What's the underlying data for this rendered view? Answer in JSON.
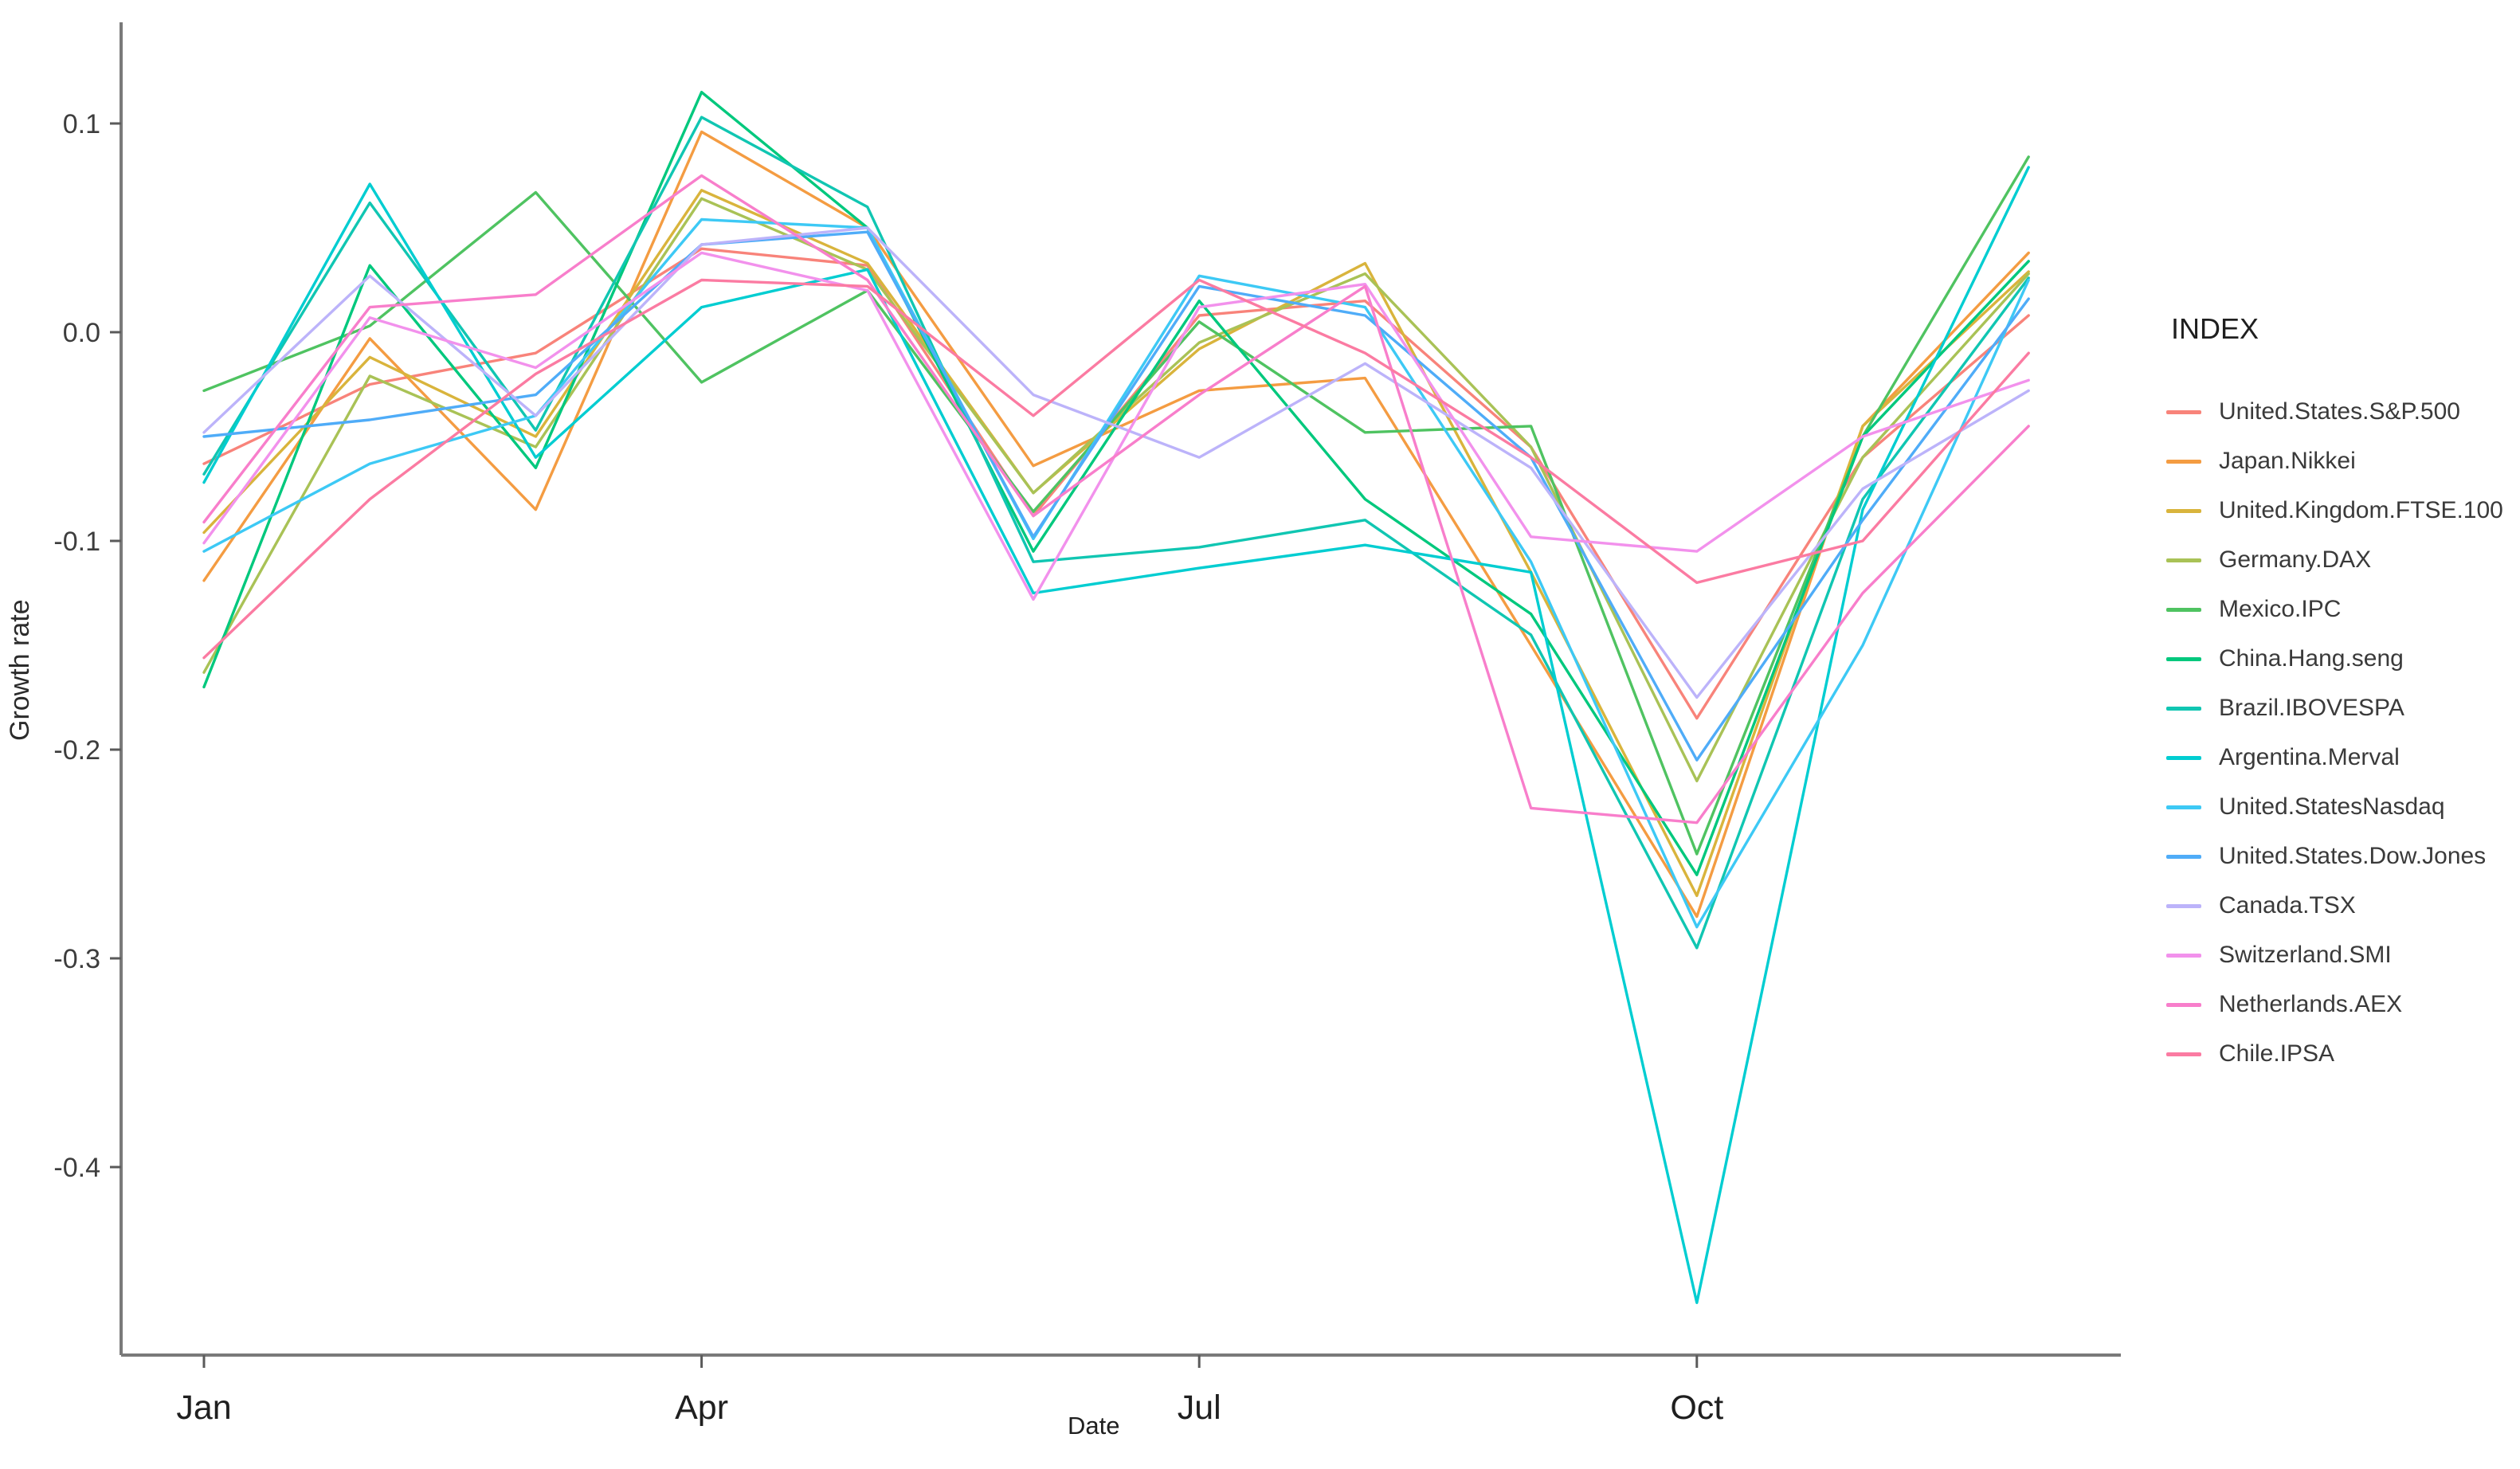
{
  "chart_data": {
    "type": "line",
    "title": "",
    "xlabel": "Date",
    "ylabel": "Growth rate",
    "legend_title": "INDEX",
    "legend_position": "right",
    "grid": false,
    "background": "#ffffff",
    "x_months": [
      "Jan",
      "Feb",
      "Mar",
      "Apr",
      "May",
      "Jun",
      "Jul",
      "Aug",
      "Sep",
      "Oct",
      "Nov",
      "Dec"
    ],
    "xtick_labels": [
      "Jan",
      "Apr",
      "Jul",
      "Oct"
    ],
    "xtick_month_index": [
      0,
      3,
      6,
      9
    ],
    "ytick_labels": [
      "0.1",
      "0.0",
      "-0.1",
      "-0.2",
      "-0.3",
      "-0.4"
    ],
    "ytick_values": [
      0.1,
      0.0,
      -0.1,
      -0.2,
      -0.3,
      -0.4
    ],
    "ylim": [
      -0.49,
      0.135
    ],
    "series": [
      {
        "name": "United.States.S&P.500",
        "color": "#F8837A",
        "values": [
          -0.063,
          -0.025,
          -0.01,
          0.04,
          0.032,
          -0.088,
          0.008,
          0.015,
          -0.055,
          -0.185,
          -0.06,
          0.008
        ]
      },
      {
        "name": "Japan.Nikkei",
        "color": "#F49C42",
        "values": [
          -0.119,
          -0.003,
          -0.085,
          0.096,
          0.05,
          -0.064,
          -0.028,
          -0.022,
          -0.15,
          -0.28,
          -0.045,
          0.038
        ]
      },
      {
        "name": "United.Kingdom.FTSE.100",
        "color": "#D9B43C",
        "values": [
          -0.096,
          -0.012,
          -0.05,
          0.068,
          0.033,
          -0.077,
          -0.008,
          0.033,
          -0.115,
          -0.27,
          -0.045,
          0.029
        ]
      },
      {
        "name": "Germany.DAX",
        "color": "#A9C256",
        "values": [
          -0.163,
          -0.021,
          -0.055,
          0.064,
          0.03,
          -0.077,
          -0.005,
          0.028,
          -0.055,
          -0.215,
          -0.06,
          0.028
        ]
      },
      {
        "name": "Mexico.IPC",
        "color": "#4FC361",
        "values": [
          -0.028,
          0.003,
          0.067,
          -0.024,
          0.02,
          -0.086,
          0.005,
          -0.048,
          -0.045,
          -0.25,
          -0.05,
          0.084
        ]
      },
      {
        "name": "China.Hang.seng",
        "color": "#00C87D",
        "values": [
          -0.17,
          0.032,
          -0.065,
          0.115,
          0.05,
          -0.105,
          0.015,
          -0.08,
          -0.135,
          -0.26,
          -0.05,
          0.034
        ]
      },
      {
        "name": "Brazil.IBOVESPA",
        "color": "#10C6B2",
        "values": [
          -0.068,
          0.062,
          -0.047,
          0.103,
          0.06,
          -0.11,
          -0.103,
          -0.09,
          -0.145,
          -0.295,
          -0.08,
          0.026
        ]
      },
      {
        "name": "Argentina.Merval",
        "color": "#00CDD1",
        "values": [
          -0.072,
          0.071,
          -0.06,
          0.012,
          0.03,
          -0.125,
          -0.113,
          -0.102,
          -0.115,
          -0.465,
          -0.085,
          0.079
        ]
      },
      {
        "name": "United.StatesNasdaq",
        "color": "#3DC9F5",
        "values": [
          -0.105,
          -0.063,
          -0.04,
          0.054,
          0.05,
          -0.099,
          0.027,
          0.012,
          -0.11,
          -0.285,
          -0.15,
          0.025
        ]
      },
      {
        "name": "United.States.Dow.Jones",
        "color": "#4FACF8",
        "values": [
          -0.05,
          -0.042,
          -0.03,
          0.042,
          0.048,
          -0.098,
          0.022,
          0.008,
          -0.06,
          -0.205,
          -0.09,
          0.016
        ]
      },
      {
        "name": "Canada.TSX",
        "color": "#BCB3FA",
        "values": [
          -0.048,
          0.027,
          -0.04,
          0.042,
          0.05,
          -0.03,
          -0.06,
          -0.015,
          -0.065,
          -0.175,
          -0.075,
          -0.028
        ]
      },
      {
        "name": "Switzerland.SMI",
        "color": "#F291EC",
        "values": [
          -0.101,
          0.007,
          -0.017,
          0.038,
          0.02,
          -0.128,
          0.012,
          0.023,
          -0.098,
          -0.105,
          -0.05,
          -0.023
        ]
      },
      {
        "name": "Netherlands.AEX",
        "color": "#F87ECB",
        "values": [
          -0.091,
          0.012,
          0.018,
          0.075,
          0.025,
          -0.088,
          -0.03,
          0.022,
          -0.228,
          -0.235,
          -0.125,
          -0.045
        ]
      },
      {
        "name": "Chile.IPSA",
        "color": "#FB7BA2",
        "values": [
          -0.156,
          -0.08,
          -0.02,
          0.025,
          0.022,
          -0.04,
          0.025,
          -0.01,
          -0.06,
          -0.12,
          -0.1,
          -0.01
        ]
      }
    ]
  }
}
